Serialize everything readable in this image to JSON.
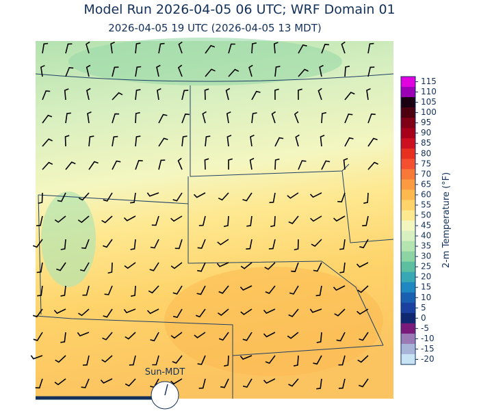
{
  "title": "Model Run 2026-04-05 06 UTC; WRF Domain 01",
  "subtitle": "2026-04-05 19 UTC  (2026-04-05 13 MDT)",
  "clock_label": "Sun-MDT",
  "colorbar": {
    "label": "2-m Temperature (°F)",
    "ticks": [
      115,
      110,
      105,
      100,
      95,
      90,
      85,
      80,
      75,
      70,
      65,
      60,
      55,
      50,
      45,
      40,
      35,
      30,
      25,
      20,
      15,
      10,
      5,
      0,
      -5,
      -10,
      -15,
      -20
    ],
    "colors": [
      "#e000e0",
      "#9b00b4",
      "#1a0010",
      "#4d0010",
      "#800015",
      "#a8001a",
      "#cc1020",
      "#e83020",
      "#f45030",
      "#f87838",
      "#fb9a40",
      "#fdb84e",
      "#fed36a",
      "#fee890",
      "#f4f6c0",
      "#d8efc0",
      "#b4e4b0",
      "#8cd4a4",
      "#5cc0a0",
      "#38a8b4",
      "#2088c0",
      "#1a60b0",
      "#1a40a0",
      "#102870",
      "#7a1a7a",
      "#9a7ab4",
      "#a8b4d8",
      "#c8e4f4"
    ]
  }
}
